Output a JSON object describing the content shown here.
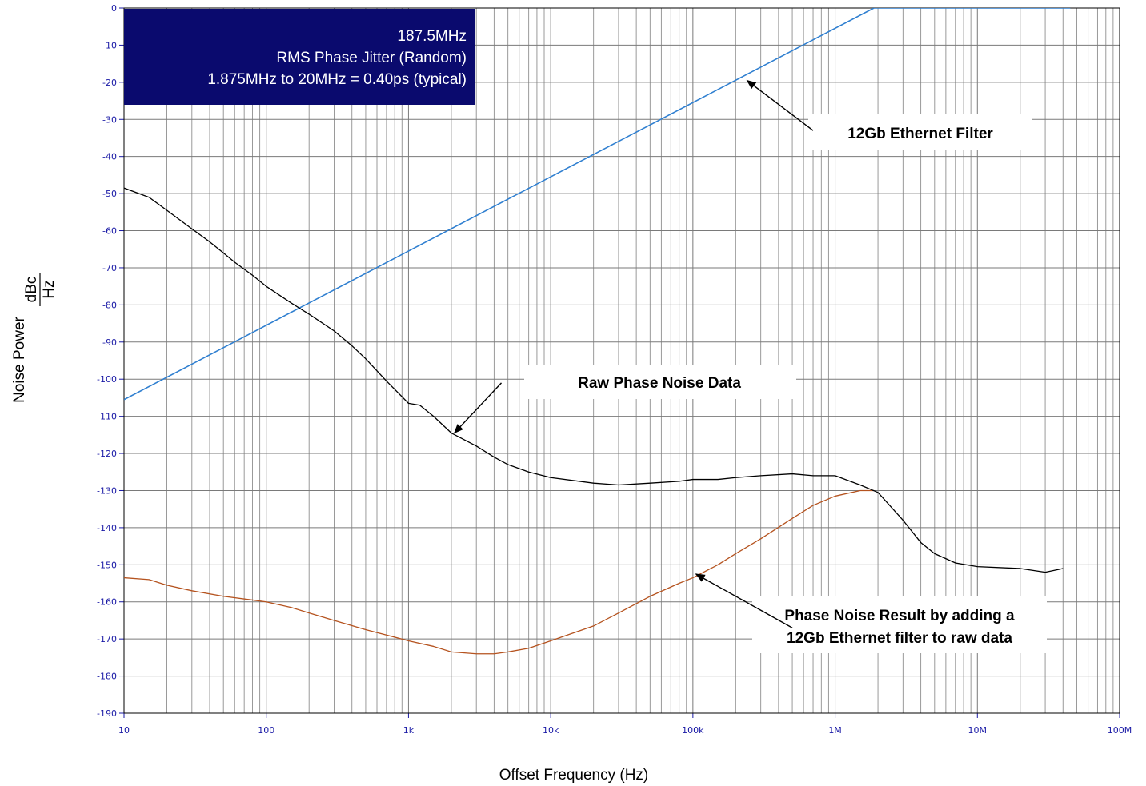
{
  "chart_data": {
    "type": "line",
    "xlabel": "Offset Frequency (Hz)",
    "ylabel": "Noise Power",
    "ylabel_unit_num": "dBc",
    "ylabel_unit_den": "Hz",
    "xscale": "log",
    "xlim": [
      10,
      100000000
    ],
    "ylim": [
      -190,
      0
    ],
    "grid": true,
    "x_ticks": [
      {
        "value": 10,
        "label": "10"
      },
      {
        "value": 100,
        "label": "100"
      },
      {
        "value": 1000,
        "label": "1k"
      },
      {
        "value": 10000,
        "label": "10k"
      },
      {
        "value": 100000,
        "label": "100k"
      },
      {
        "value": 1000000,
        "label": "1M"
      },
      {
        "value": 10000000,
        "label": "10M"
      },
      {
        "value": 100000000,
        "label": "100M"
      }
    ],
    "y_ticks": [
      0,
      -10,
      -20,
      -30,
      -40,
      -50,
      -60,
      -70,
      -80,
      -90,
      -100,
      -110,
      -120,
      -130,
      -140,
      -150,
      -160,
      -170,
      -180,
      -190
    ],
    "info_box": {
      "line1": "187.5MHz",
      "line2": "RMS Phase Jitter (Random)",
      "line3": "1.875MHz to 20MHz = 0.40ps (typical)",
      "background": "#0a0a6e"
    },
    "series": [
      {
        "key": "filter",
        "color": "#2f7fd0",
        "x": [
          10,
          1875000,
          45000000
        ],
        "y": [
          -105.5,
          0,
          0
        ]
      },
      {
        "key": "raw",
        "color": "#000000",
        "x": [
          10,
          15,
          20,
          30,
          40,
          50,
          60,
          80,
          100,
          150,
          200,
          300,
          400,
          500,
          700,
          1000,
          1200,
          1500,
          2000,
          3000,
          4000,
          5000,
          7000,
          10000,
          20000,
          30000,
          50000,
          80000,
          100000,
          150000,
          200000,
          300000,
          500000,
          700000,
          1000000,
          1500000,
          2000000,
          3000000,
          4000000,
          5000000,
          7000000,
          10000000,
          20000000,
          30000000,
          40000000
        ],
        "y": [
          -48.5,
          -51,
          -54.5,
          -59.5,
          -63,
          -66,
          -68.5,
          -72,
          -75,
          -79.5,
          -82.5,
          -87,
          -91,
          -94.5,
          -100.5,
          -106.5,
          -107,
          -110,
          -114.5,
          -118,
          -121,
          -123,
          -125,
          -126.5,
          -128,
          -128.5,
          -128,
          -127.5,
          -127,
          -127,
          -126.5,
          -126,
          -125.5,
          -126,
          -126,
          -128.5,
          -130.5,
          -138,
          -144,
          -147,
          -149.5,
          -150.5,
          -151,
          -152,
          -151
        ]
      },
      {
        "key": "result",
        "color": "#b5531f",
        "x": [
          10,
          15,
          20,
          30,
          50,
          80,
          100,
          150,
          200,
          300,
          500,
          1000,
          1500,
          2000,
          3000,
          4000,
          5000,
          7000,
          10000,
          20000,
          30000,
          50000,
          80000,
          100000,
          150000,
          200000,
          300000,
          500000,
          700000,
          1000000,
          1500000,
          1875000
        ],
        "y": [
          -153.5,
          -154,
          -155.5,
          -157,
          -158.5,
          -159.5,
          -160,
          -161.5,
          -163,
          -165,
          -167.5,
          -170.5,
          -172,
          -173.5,
          -174,
          -174,
          -173.5,
          -172.5,
          -170.5,
          -166.5,
          -163,
          -158.5,
          -155,
          -153.5,
          -150,
          -147,
          -143,
          -137.5,
          -134,
          -131.5,
          -130,
          -130
        ]
      }
    ],
    "annotations": [
      {
        "key": "filter",
        "text": "12Gb Ethernet Filter",
        "arrow_from": [
          700000,
          -33
        ],
        "arrow_to": [
          240000,
          -19.5
        ]
      },
      {
        "key": "raw",
        "text": "Raw Phase Noise Data",
        "arrow_from": [
          4500,
          -101
        ],
        "arrow_to": [
          2100,
          -114.5
        ]
      },
      {
        "key": "result",
        "line1": "Phase Noise Result by adding a",
        "line2": "12Gb Ethernet filter to raw data",
        "arrow_from": [
          500000,
          -167
        ],
        "arrow_to": [
          105000,
          -152.5
        ]
      }
    ]
  }
}
